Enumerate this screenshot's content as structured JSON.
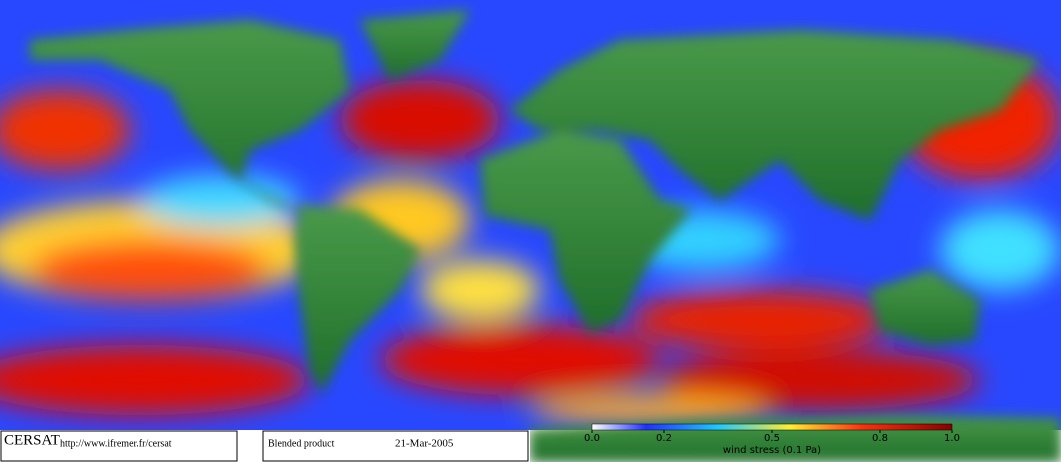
{
  "footer": {
    "logo": "CERSAT",
    "url": "http://www.ifremer.fr/cersat",
    "product": "Blended product",
    "date": "21-Mar-2005"
  },
  "colorbar": {
    "lim": [
      0,
      1
    ],
    "ticks": [
      {
        "value": 0,
        "label": "0.0"
      },
      0.2,
      0.5,
      0.8,
      {
        "value": 1,
        "label": "1.0"
      }
    ],
    "label": "wind stress (0.1 Pa)"
  }
}
